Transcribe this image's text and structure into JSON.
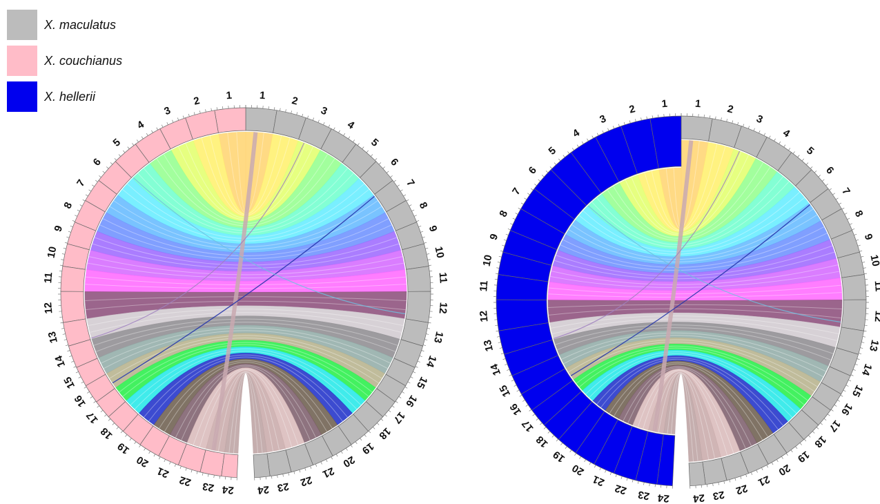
{
  "legend": [
    {
      "label": "X. maculatus",
      "color": "#bcbcbc"
    },
    {
      "label": "X. couchianus",
      "color": "#ffbcc8"
    },
    {
      "label": "X. hellerii",
      "color": "#0000ee"
    }
  ],
  "chromosomes": [
    "1",
    "2",
    "3",
    "4",
    "5",
    "6",
    "7",
    "8",
    "9",
    "10",
    "11",
    "12",
    "13",
    "14",
    "15",
    "16",
    "17",
    "18",
    "19",
    "20",
    "21",
    "22",
    "23",
    "24"
  ],
  "ribbon_colors": [
    "#ffd36e",
    "#fff06a",
    "#e2ff6a",
    "#92ff8c",
    "#6dffcc",
    "#62ecff",
    "#62b8ff",
    "#6a8eff",
    "#9b66ff",
    "#d466ff",
    "#ff66ff",
    "#8a4a78",
    "#d0c9cf",
    "#8c8a8e",
    "#8faaa6",
    "#b5b08a",
    "#22ee44",
    "#1ee8e8",
    "#1a2cc8",
    "#6a5a4a",
    "#7a5a68",
    "#d8b8b8",
    "#c8a8a8",
    "#bba0a0"
  ],
  "plots": [
    {
      "right_genome": "X. maculatus",
      "left_genome": "X. couchianus"
    },
    {
      "right_genome": "X. maculatus",
      "left_genome": "X. hellerii"
    }
  ]
}
